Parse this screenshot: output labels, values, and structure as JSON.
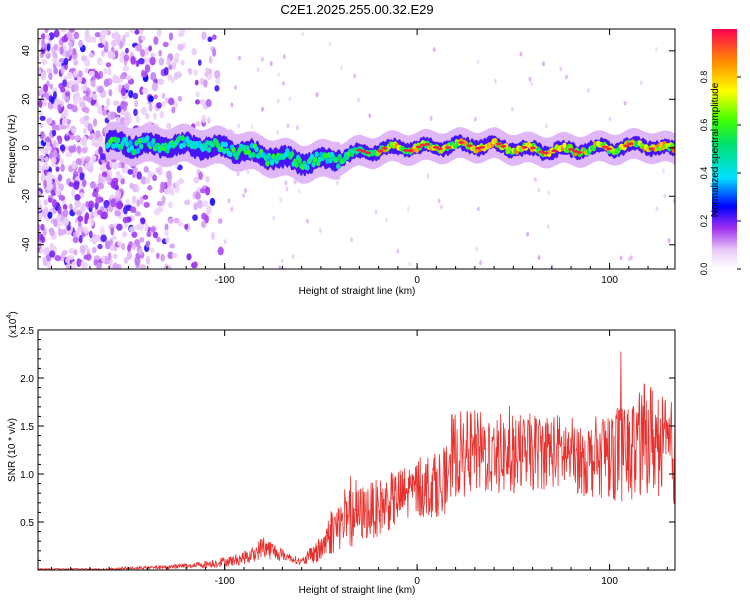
{
  "title": "C2E1.2025.255.00.32.E29",
  "chart_data": [
    {
      "type": "heatmap",
      "xlabel": "Height of straight line (km)",
      "ylabel": "Frequency (Hz)",
      "xlim": [
        -197,
        134
      ],
      "ylim": [
        -50,
        49
      ],
      "xticks": [
        -100,
        0,
        100
      ],
      "yticks": [
        -40,
        -20,
        0,
        20,
        40
      ],
      "colorbar": {
        "label": "Normalized spectral amplitude",
        "range": [
          0,
          1
        ],
        "ticks": [
          "0.0",
          "0.2",
          "0.4",
          "0.6",
          "0.8"
        ]
      },
      "ridge": {
        "description_points_x": [
          -161,
          -140,
          -120,
          -100,
          -80,
          -60,
          -45,
          -30,
          -10,
          0,
          20,
          40,
          60,
          80,
          100,
          120,
          134
        ],
        "description_points_freq": [
          2,
          1,
          1,
          0,
          -3,
          -6,
          -5,
          -2,
          0,
          0,
          1,
          1,
          -1,
          -1,
          0,
          1,
          -1
        ]
      }
    },
    {
      "type": "line",
      "xlabel": "Height of straight line (km)",
      "ylabel": "SNR (10 * v/v)",
      "yscale_label": "(x10",
      "yscale_exp": "4",
      "xlim": [
        -197,
        134
      ],
      "ylim": [
        0,
        2.5
      ],
      "xticks": [
        -100,
        0,
        100
      ],
      "yticks": [
        "0.5",
        "1.0",
        "1.5",
        "2.0",
        "2.5"
      ],
      "series": [
        {
          "name": "SNR",
          "color": "#e8312e",
          "envelope_x": [
            -197,
            -160,
            -130,
            -110,
            -95,
            -85,
            -80,
            -75,
            -70,
            -65,
            -60,
            -50,
            -45,
            -40,
            -35,
            -30,
            -20,
            -10,
            0,
            10,
            17,
            18,
            30,
            50,
            70,
            90,
            100,
            110,
            120,
            130,
            134
          ],
          "envelope_mean": [
            0.01,
            0.01,
            0.03,
            0.06,
            0.1,
            0.16,
            0.25,
            0.2,
            0.16,
            0.12,
            0.08,
            0.22,
            0.4,
            0.48,
            0.52,
            0.58,
            0.65,
            0.75,
            0.85,
            0.9,
            0.95,
            1.2,
            1.22,
            1.2,
            1.25,
            1.15,
            1.25,
            1.2,
            1.4,
            1.25,
            1.2
          ],
          "envelope_amp": [
            0.005,
            0.008,
            0.02,
            0.04,
            0.06,
            0.08,
            0.12,
            0.1,
            0.06,
            0.04,
            0.04,
            0.15,
            0.25,
            0.28,
            0.3,
            0.3,
            0.3,
            0.3,
            0.32,
            0.35,
            0.35,
            0.45,
            0.45,
            0.42,
            0.4,
            0.4,
            0.5,
            0.55,
            0.6,
            0.55,
            0.55
          ]
        }
      ]
    }
  ]
}
